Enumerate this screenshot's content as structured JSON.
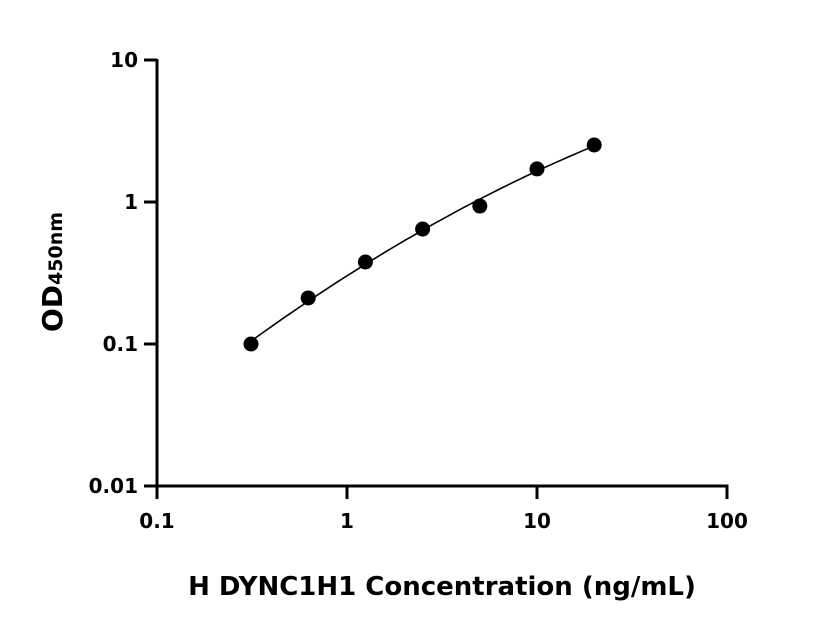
{
  "chart_data": {
    "type": "scatter",
    "title": "",
    "xlabel": "H DYNC1H1 Concentration (ng/mL)",
    "ylabel_main": "OD",
    "ylabel_sub": "450nm",
    "x_scale": "log",
    "y_scale": "log",
    "xlim": [
      0.1,
      100
    ],
    "ylim": [
      0.01,
      10
    ],
    "x_ticks": [
      0.1,
      1,
      10,
      100
    ],
    "x_tick_labels": [
      "0.1",
      "1",
      "10",
      "100"
    ],
    "y_ticks": [
      0.01,
      0.1,
      1,
      10
    ],
    "y_tick_labels": [
      "0.01",
      "0.1",
      "1",
      "10"
    ],
    "grid": false,
    "legend": "none",
    "fit_curve": true,
    "series": [
      {
        "x": [
          0.3125,
          0.625,
          1.25,
          2.5,
          5,
          10,
          20
        ],
        "y": [
          0.1,
          0.211,
          0.378,
          0.645,
          0.937,
          1.71,
          2.52
        ],
        "color": "#000000"
      }
    ]
  }
}
